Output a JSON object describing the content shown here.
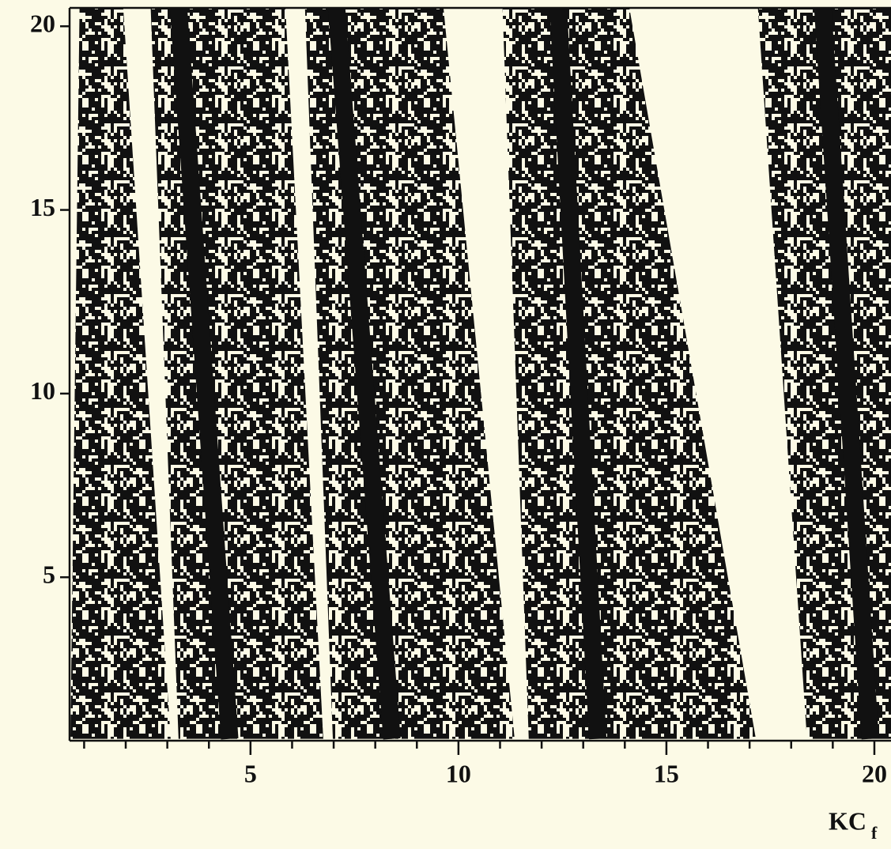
{
  "chart_data": {
    "type": "stripes",
    "x_label": "KC",
    "x_label_sub": "f",
    "xlim": [
      0.65,
      20.4
    ],
    "ylim": [
      0.55,
      20.5
    ],
    "xticks": [
      5,
      10,
      15,
      20
    ],
    "xminorticks": [
      1,
      2,
      3,
      4,
      6,
      7,
      8,
      9,
      11,
      12,
      13,
      14,
      16,
      17,
      18,
      19
    ],
    "yticks": [
      5,
      10,
      15,
      20
    ],
    "color": "#111111",
    "bands": [
      {
        "x_bottom": [
          0.67,
          3.08
        ],
        "x_top": [
          0.89,
          1.94
        ],
        "y": [
          0.6,
          20.5
        ]
      },
      {
        "x_bottom": [
          3.27,
          6.75
        ],
        "x_top": [
          2.6,
          5.84
        ],
        "y": [
          0.6,
          20.5
        ],
        "ridge": [
          4.5,
          3.27
        ]
      },
      {
        "x_bottom": [
          6.98,
          11.35
        ],
        "x_top": [
          6.31,
          9.64
        ],
        "y": [
          0.6,
          20.5
        ],
        "ridge": [
          8.4,
          7.07
        ]
      },
      {
        "x_bottom": [
          11.69,
          17.15
        ],
        "x_top": [
          11.06,
          14.11
        ],
        "y": [
          0.6,
          20.5
        ],
        "ridge": [
          13.35,
          12.4
        ]
      },
      {
        "x_bottom": [
          18.38,
          20.4
        ],
        "x_top": [
          17.2,
          20.4
        ],
        "y": [
          0.6,
          20.5
        ],
        "ridge": [
          19.9,
          18.76
        ]
      }
    ]
  }
}
